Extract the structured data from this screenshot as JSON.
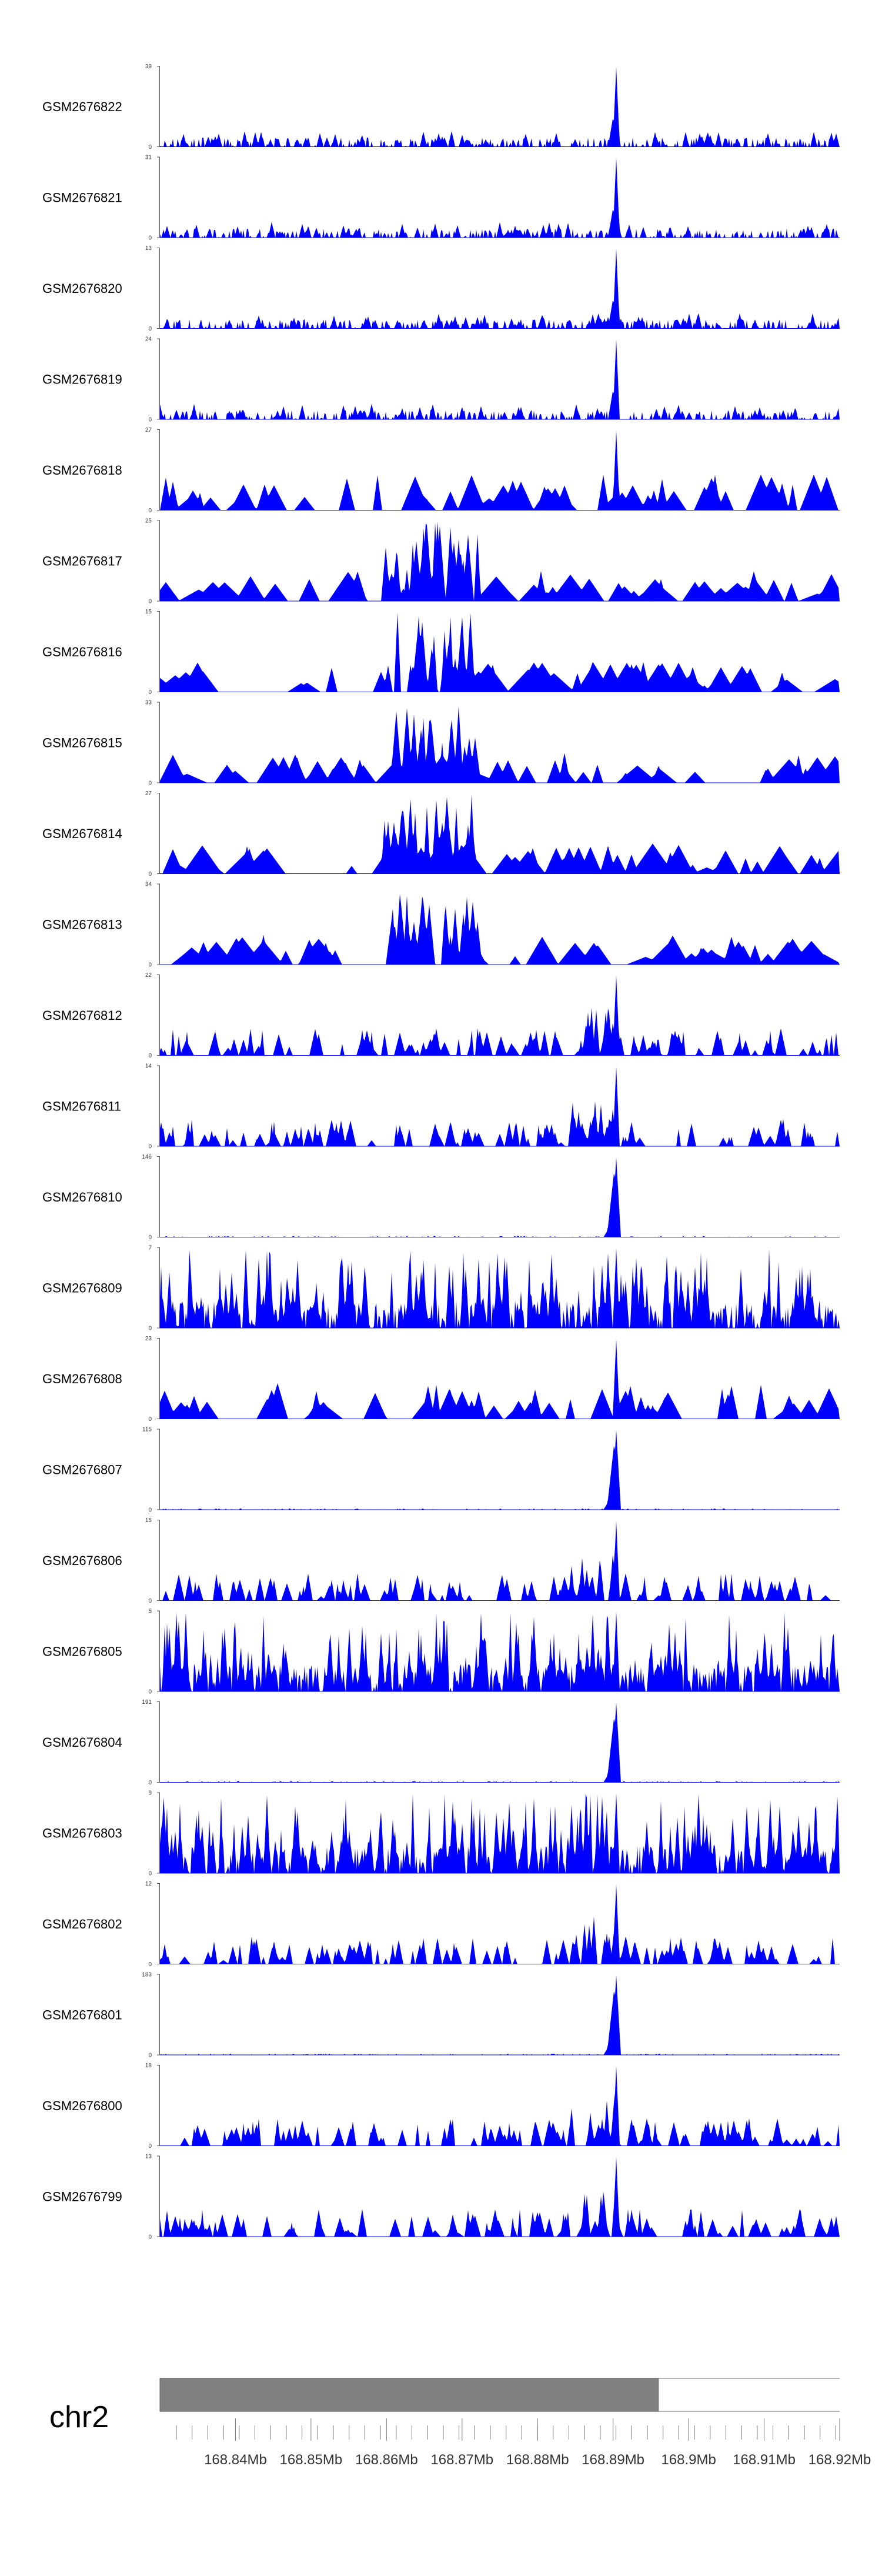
{
  "chart_data": {
    "type": "area",
    "title": "",
    "xlabel": "",
    "ylabel": "",
    "chromosome": "chr2",
    "x_range_mb": [
      168.83,
      168.92
    ],
    "x_tick_labels": [
      "168.84Mb",
      "168.85Mb",
      "168.86Mb",
      "168.87Mb",
      "168.88Mb",
      "168.89Mb",
      "168.9Mb",
      "168.91Mb",
      "168.92Mb"
    ],
    "x_tick_values_mb": [
      168.84,
      168.85,
      168.86,
      168.87,
      168.88,
      168.89,
      168.9,
      168.91,
      168.92
    ],
    "ideogram": {
      "shaded_range_mb": [
        168.83,
        168.896
      ],
      "shade_color": "#808080"
    },
    "fill_color": "#0000ff",
    "peak_center_mb": 168.8904,
    "tracks": [
      {
        "name": "GSM2676822",
        "ymax": 39,
        "y_tick_labels": [
          "39",
          "0"
        ],
        "profile": "sharp_peak",
        "peak": 39
      },
      {
        "name": "GSM2676821",
        "ymax": 31,
        "y_tick_labels": [
          "31",
          "0"
        ],
        "profile": "sharp_peak",
        "peak": 31
      },
      {
        "name": "GSM2676820",
        "ymax": 13,
        "y_tick_labels": [
          "13",
          "0"
        ],
        "profile": "sharp_peak",
        "peak": 13
      },
      {
        "name": "GSM2676819",
        "ymax": 24,
        "y_tick_labels": [
          "24",
          "0"
        ],
        "profile": "sharp_peak",
        "peak": 24
      },
      {
        "name": "GSM2676818",
        "ymax": 27,
        "y_tick_labels": [
          "27",
          "0"
        ],
        "profile": "sparse_peak",
        "peak": 27
      },
      {
        "name": "GSM2676817",
        "ymax": 25,
        "y_tick_labels": [
          "25",
          "0"
        ],
        "profile": "sparse_mid",
        "peak": 25
      },
      {
        "name": "GSM2676816",
        "ymax": 15,
        "y_tick_labels": [
          "15",
          "0"
        ],
        "profile": "sparse_mid",
        "peak": 15
      },
      {
        "name": "GSM2676815",
        "ymax": 33,
        "y_tick_labels": [
          "33",
          "0"
        ],
        "profile": "sparse_mid",
        "peak": 33
      },
      {
        "name": "GSM2676814",
        "ymax": 27,
        "y_tick_labels": [
          "27",
          "0"
        ],
        "profile": "sparse_mid",
        "peak": 27
      },
      {
        "name": "GSM2676813",
        "ymax": 34,
        "y_tick_labels": [
          "34",
          "0"
        ],
        "profile": "sparse_mid",
        "peak": 34
      },
      {
        "name": "GSM2676812",
        "ymax": 22,
        "y_tick_labels": [
          "22",
          "0"
        ],
        "profile": "broad_peak",
        "peak": 22
      },
      {
        "name": "GSM2676811",
        "ymax": 14,
        "y_tick_labels": [
          "14",
          "0"
        ],
        "profile": "broad_peak",
        "peak": 14
      },
      {
        "name": "GSM2676810",
        "ymax": 146,
        "y_tick_labels": [
          "146",
          "0"
        ],
        "profile": "isolated_peak",
        "peak": 146
      },
      {
        "name": "GSM2676809",
        "ymax": 7,
        "y_tick_labels": [
          "7",
          "0"
        ],
        "profile": "dense_noise",
        "peak": 7
      },
      {
        "name": "GSM2676808",
        "ymax": 23,
        "y_tick_labels": [
          "23",
          "0"
        ],
        "profile": "sparse_peak",
        "peak": 23
      },
      {
        "name": "GSM2676807",
        "ymax": 115,
        "y_tick_labels": [
          "115",
          "0"
        ],
        "profile": "isolated_peak",
        "peak": 115
      },
      {
        "name": "GSM2676806",
        "ymax": 15,
        "y_tick_labels": [
          "15",
          "0"
        ],
        "profile": "broad_peak",
        "peak": 15
      },
      {
        "name": "GSM2676805",
        "ymax": 5,
        "y_tick_labels": [
          "5",
          "0"
        ],
        "profile": "dense_noise",
        "peak": 5
      },
      {
        "name": "GSM2676804",
        "ymax": 191,
        "y_tick_labels": [
          "191",
          "0"
        ],
        "profile": "isolated_peak",
        "peak": 191
      },
      {
        "name": "GSM2676803",
        "ymax": 9,
        "y_tick_labels": [
          "9",
          "0"
        ],
        "profile": "dense_noise",
        "peak": 9
      },
      {
        "name": "GSM2676802",
        "ymax": 12,
        "y_tick_labels": [
          "12",
          "0"
        ],
        "profile": "broad_peak",
        "peak": 12
      },
      {
        "name": "GSM2676801",
        "ymax": 183,
        "y_tick_labels": [
          "183",
          "0"
        ],
        "profile": "isolated_peak",
        "peak": 183
      },
      {
        "name": "GSM2676800",
        "ymax": 18,
        "y_tick_labels": [
          "18",
          "0"
        ],
        "profile": "broad_peak",
        "peak": 18
      },
      {
        "name": "GSM2676799",
        "ymax": 13,
        "y_tick_labels": [
          "13",
          "0"
        ],
        "profile": "broad_peak",
        "peak": 13
      }
    ]
  }
}
